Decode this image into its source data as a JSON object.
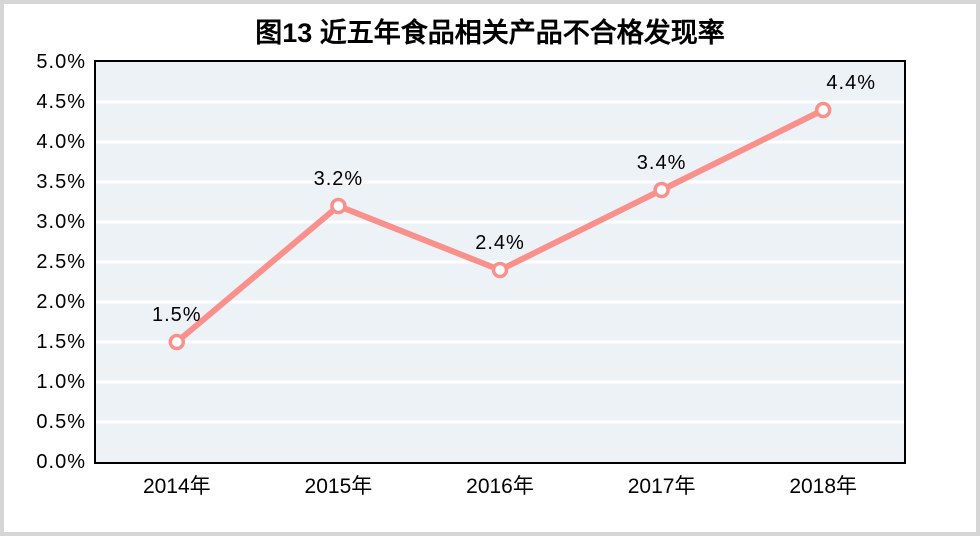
{
  "frame": {
    "background": "#ffffff",
    "border_color": "#d6d6d6"
  },
  "chart_data": {
    "type": "line",
    "title": "图13 近五年食品相关产品不合格发现率",
    "categories": [
      "2014年",
      "2015年",
      "2016年",
      "2017年",
      "2018年"
    ],
    "values": [
      1.5,
      3.2,
      2.4,
      3.4,
      4.4
    ],
    "point_labels": [
      "1.5%",
      "3.2%",
      "2.4%",
      "3.4%",
      "4.4%"
    ],
    "y_ticks": [
      "0.0%",
      "0.5%",
      "1.0%",
      "1.5%",
      "2.0%",
      "2.5%",
      "3.0%",
      "3.5%",
      "4.0%",
      "4.5%",
      "5.0%"
    ],
    "ylim": [
      0,
      5
    ],
    "y_step": 0.5,
    "xlabel": "",
    "ylabel": "",
    "grid": true,
    "legend": false,
    "colors": {
      "line": "#f9908b",
      "marker_fill": "#ffffff",
      "plot_background": "#edf2f7",
      "gridline": "#ffffff",
      "plot_border": "#000000",
      "text": "#000000"
    }
  }
}
